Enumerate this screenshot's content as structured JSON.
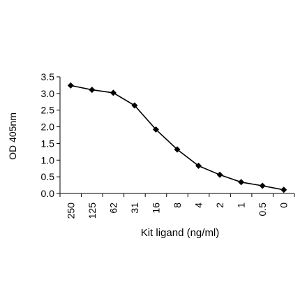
{
  "chart_data": {
    "type": "line",
    "title": "",
    "xlabel": "Kit ligand (ng/ml)",
    "ylabel": "OD 405nm",
    "categories": [
      "250",
      "125",
      "62",
      "31",
      "16",
      "8",
      "4",
      "2",
      "1",
      "0.5",
      "0"
    ],
    "series": [
      {
        "values": [
          3.24,
          3.11,
          3.02,
          2.64,
          1.92,
          1.32,
          0.83,
          0.56,
          0.34,
          0.23,
          0.11
        ]
      }
    ],
    "ylim": [
      0,
      3.5
    ],
    "yticks": [
      "0.0",
      "0.5",
      "1.0",
      "1.5",
      "2.0",
      "2.5",
      "3.0",
      "3.5"
    ],
    "grid": false,
    "legend": "none",
    "marker": "diamond",
    "line_color": "#000000"
  }
}
